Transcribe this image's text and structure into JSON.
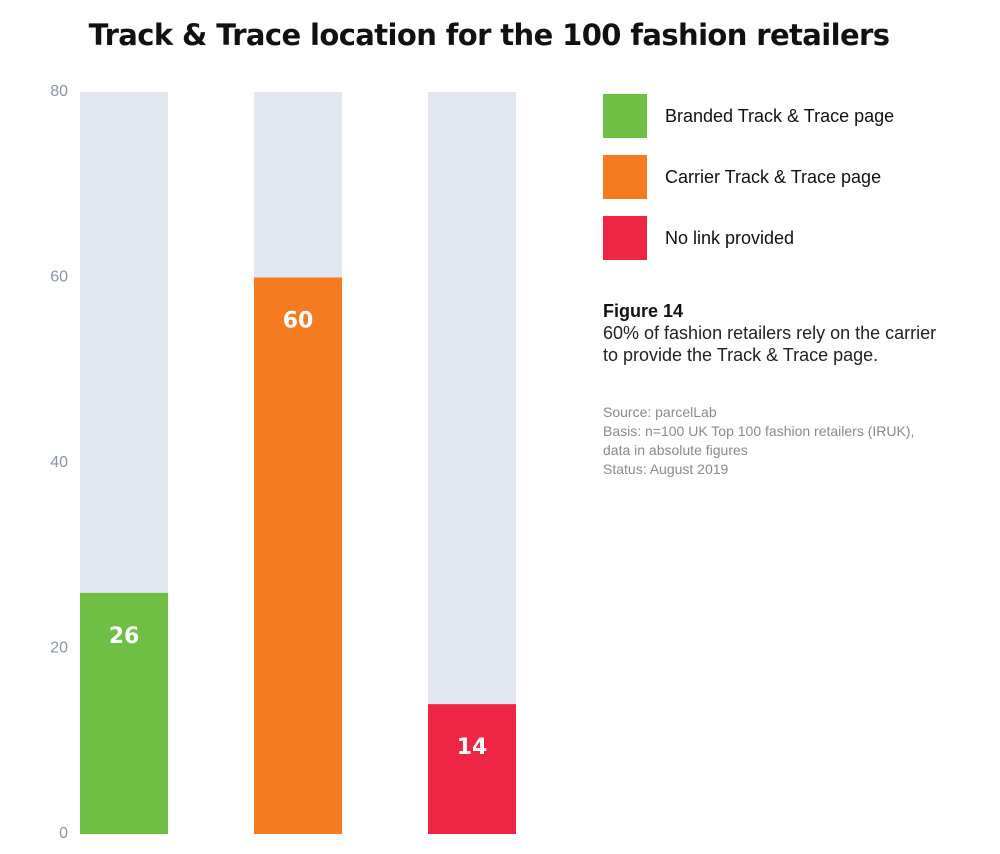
{
  "title": "Track & Trace location for the 100 fashion retailers",
  "chart_data": {
    "type": "bar",
    "categories": [
      "Branded Track & Trace page",
      "Carrier Track & Trace page",
      "No link provided"
    ],
    "values": [
      26,
      60,
      14
    ],
    "data_labels": [
      "26",
      "60",
      "14"
    ],
    "colors": [
      "#6fbf44",
      "#f47b20",
      "#ef2545"
    ],
    "background_bar_color": "#e3e7f0",
    "ylim": [
      0,
      80
    ],
    "yticks": [
      0,
      20,
      40,
      60,
      80
    ],
    "ytick_labels": [
      "0",
      "20",
      "40",
      "60",
      "80"
    ],
    "grid": false,
    "legend_position": "right"
  },
  "legend": {
    "items": [
      {
        "label": "Branded Track & Trace page",
        "color": "#6fbf44"
      },
      {
        "label": "Carrier Track & Trace page",
        "color": "#f47b20"
      },
      {
        "label": "No link provided",
        "color": "#ef2545"
      }
    ]
  },
  "figure": {
    "title": "Figure 14",
    "caption_lines": [
      "60% of fashion retailers rely on the carrier",
      "to provide the Track & Trace page."
    ]
  },
  "source": {
    "lines": [
      "Source: parcelLab",
      "Basis: n=100 UK Top 100 fashion retailers (IRUK),",
      "data in absolute figures",
      "Status: August 2019"
    ]
  }
}
